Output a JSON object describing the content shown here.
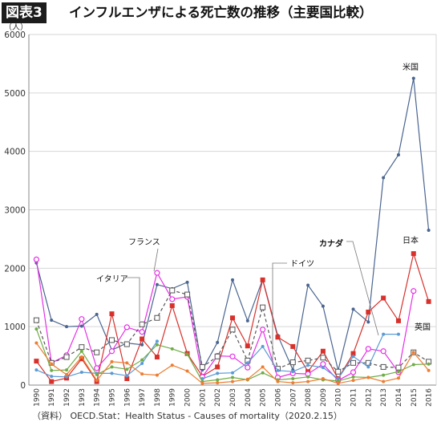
{
  "figure": {
    "tag": "図表3",
    "title": "インフルエンザによる死亡数の推移（主要国比較）",
    "source": "（資料） OECD.Stat：Health Status - Causes of mortality（2020.2.15）"
  },
  "chart_data": {
    "type": "line",
    "y_unit": "（人）",
    "ylim": [
      0,
      6000
    ],
    "y_ticks": [
      0,
      1000,
      2000,
      3000,
      4000,
      5000,
      6000
    ],
    "grid": "horizontal",
    "categories": [
      "1990",
      "1991",
      "1992",
      "1993",
      "1994",
      "1995",
      "1996",
      "1997",
      "1998",
      "1999",
      "2000",
      "2001",
      "2002",
      "2003",
      "2004",
      "2005",
      "2006",
      "2007",
      "2008",
      "2009",
      "2010",
      "2011",
      "2012",
      "2013",
      "2014",
      "2015",
      "2016"
    ],
    "series": [
      {
        "name": "米国",
        "color": "#4a6590",
        "marker": "dot",
        "dash": "",
        "values": [
          2090,
          1110,
          1000,
          1010,
          1210,
          600,
          720,
          690,
          1720,
          1650,
          1760,
          260,
          730,
          1800,
          1100,
          1810,
          850,
          260,
          1710,
          1350,
          250,
          1300,
          1080,
          3550,
          3940,
          5250,
          2650
        ]
      },
      {
        "name": "日本",
        "color": "#d8312c",
        "marker": "square",
        "dash": "",
        "values": [
          410,
          60,
          120,
          450,
          60,
          1220,
          110,
          790,
          480,
          1360,
          540,
          150,
          310,
          1150,
          670,
          1800,
          820,
          660,
          230,
          580,
          110,
          540,
          1250,
          1490,
          1100,
          2250,
          1430
        ]
      },
      {
        "name": "フランス",
        "color": "#e630e6",
        "marker": "circle",
        "dash": "",
        "values": [
          2150,
          380,
          510,
          1130,
          290,
          580,
          990,
          910,
          1920,
          1470,
          1510,
          140,
          500,
          490,
          300,
          950,
          130,
          200,
          190,
          360,
          80,
          220,
          620,
          580,
          220,
          1610,
          null
        ]
      },
      {
        "name": "ドイツ",
        "color": "#555555",
        "marker": "hollow-square",
        "dash": "4 3",
        "values": [
          1110,
          380,
          480,
          650,
          560,
          770,
          700,
          1040,
          1150,
          1620,
          1550,
          310,
          490,
          950,
          420,
          1330,
          280,
          390,
          420,
          470,
          230,
          380,
          380,
          310,
          300,
          560,
          400
        ]
      },
      {
        "name": "イタリア",
        "color": "#5b9bd5",
        "marker": "dot",
        "dash": "",
        "values": [
          260,
          150,
          140,
          220,
          200,
          200,
          160,
          370,
          750,
          null,
          null,
          110,
          200,
          210,
          380,
          660,
          250,
          230,
          340,
          300,
          110,
          490,
          310,
          870,
          870,
          null,
          null
        ]
      },
      {
        "name": "英国",
        "color": "#70ad47",
        "marker": "dot",
        "dash": "",
        "values": [
          960,
          250,
          260,
          580,
          180,
          310,
          270,
          430,
          690,
          620,
          530,
          60,
          90,
          130,
          90,
          210,
          90,
          110,
          140,
          90,
          70,
          140,
          130,
          170,
          230,
          350,
          360
        ]
      },
      {
        "name": "",
        "color": "#ed7d31",
        "marker": "dot",
        "dash": "",
        "values": [
          720,
          360,
          180,
          480,
          80,
          400,
          380,
          190,
          170,
          340,
          240,
          30,
          40,
          60,
          100,
          310,
          60,
          40,
          60,
          110,
          30,
          80,
          130,
          60,
          120,
          560,
          250
        ]
      }
    ],
    "labels": [
      {
        "text": "米国",
        "series": "米国"
      },
      {
        "text": "日本",
        "series": "日本"
      },
      {
        "text": "フランス",
        "series": "フランス"
      },
      {
        "text": "ドイツ",
        "series": "ドイツ"
      },
      {
        "text": "イタリア",
        "series": "イタリア"
      },
      {
        "text": "カナダ",
        "series": ""
      },
      {
        "text": "英国",
        "series": "英国"
      }
    ]
  }
}
